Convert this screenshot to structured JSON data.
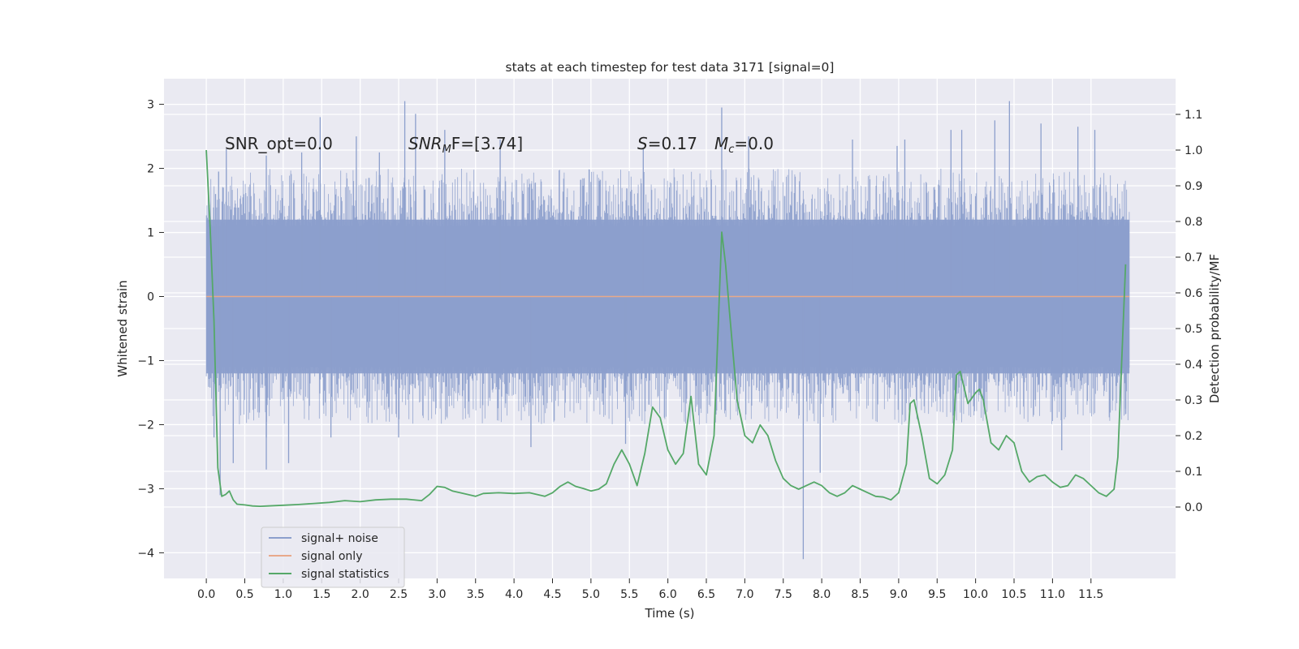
{
  "chart_data": {
    "type": "line",
    "title": "stats at each timestep for test data 3171 [signal=0]",
    "xlabel": "Time (s)",
    "ylabel": "Whitened strain",
    "ylabel_right": "Detection probability/MF",
    "xlim": [
      -0.55,
      12.6
    ],
    "ylim": [
      -4.4,
      3.4
    ],
    "ylim_right": [
      -0.2,
      1.2
    ],
    "x_ticks": [
      0.0,
      0.5,
      1.0,
      1.5,
      2.0,
      2.5,
      3.0,
      3.5,
      4.0,
      4.5,
      5.0,
      5.5,
      6.0,
      6.5,
      7.0,
      7.5,
      8.0,
      8.5,
      9.0,
      9.5,
      10.0,
      10.5,
      11.0,
      11.5
    ],
    "x_tick_labels": [
      "0.0",
      "0.5",
      "1.0",
      "1.5",
      "2.0",
      "2.5",
      "3.0",
      "3.5",
      "4.0",
      "4.5",
      "5.0",
      "5.5",
      "6.0",
      "6.5",
      "7.0",
      "7.5",
      "8.0",
      "8.5",
      "9.0",
      "9.5",
      "10.0",
      "10.5",
      "11.0",
      "11.5"
    ],
    "y_ticks": [
      3,
      2,
      1,
      0,
      -1,
      -2,
      -3,
      -4
    ],
    "y_tick_labels": [
      "3",
      "2",
      "1",
      "0",
      "−1",
      "−2",
      "−3",
      "−4"
    ],
    "y_ticks_right": [
      1.1,
      1.0,
      0.9,
      0.8,
      0.7,
      0.6,
      0.5,
      0.4,
      0.3,
      0.2,
      0.1,
      0.0
    ],
    "y_tick_labels_right": [
      "1.1",
      "1.0",
      "0.9",
      "0.8",
      "0.7",
      "0.6",
      "0.5",
      "0.4",
      "0.3",
      "0.2",
      "0.1",
      "0.0"
    ],
    "grid": true,
    "legend": {
      "placement": "lower-left",
      "entries": [
        {
          "label": "signal+ noise",
          "color": "#8c9fcc"
        },
        {
          "label": "signal only",
          "color": "#e8a98a"
        },
        {
          "label": "signal statistics",
          "color": "#55a868"
        }
      ]
    },
    "annotations": [
      {
        "text": "SNR_opt=0.0"
      },
      {
        "text": "SNR",
        "sub": "M",
        "tail": "F=[3.74]"
      },
      {
        "text": "S",
        "tail": "=0.17"
      },
      {
        "text": "M",
        "sub": "c",
        "tail": "=0.0"
      }
    ],
    "series": [
      {
        "name": "signal+ noise",
        "axis": "left",
        "color": "#8c9fcc",
        "x_range": [
          0.0,
          12.0
        ],
        "band": [
          -1.2,
          1.2
        ],
        "spikes": [
          {
            "x": 0.05,
            "y": -1.25
          },
          {
            "x": 0.08,
            "y": 1.05
          },
          {
            "x": 0.1,
            "y": -2.2
          },
          {
            "x": 0.12,
            "y": 1.6
          },
          {
            "x": 0.16,
            "y": 1.95
          },
          {
            "x": 0.18,
            "y": -3.1
          },
          {
            "x": 0.22,
            "y": 1.7
          },
          {
            "x": 0.26,
            "y": 2.3
          },
          {
            "x": 0.35,
            "y": -2.6
          },
          {
            "x": 0.78,
            "y": -2.2
          },
          {
            "x": 0.78,
            "y": 2.2
          },
          {
            "x": 0.78,
            "y": -2.7
          },
          {
            "x": 1.07,
            "y": -2.6
          },
          {
            "x": 1.24,
            "y": 2.25
          },
          {
            "x": 1.48,
            "y": 2.8
          },
          {
            "x": 1.62,
            "y": -2.2
          },
          {
            "x": 1.95,
            "y": 2.5
          },
          {
            "x": 2.25,
            "y": 2.25
          },
          {
            "x": 2.5,
            "y": -2.2
          },
          {
            "x": 2.58,
            "y": 3.05
          },
          {
            "x": 2.72,
            "y": 2.85
          },
          {
            "x": 3.1,
            "y": 2.6
          },
          {
            "x": 3.82,
            "y": 2.45
          },
          {
            "x": 4.22,
            "y": -2.35
          },
          {
            "x": 5.45,
            "y": -2.3
          },
          {
            "x": 5.68,
            "y": 2.3
          },
          {
            "x": 6.7,
            "y": 2.95
          },
          {
            "x": 7.05,
            "y": 2.5
          },
          {
            "x": 7.76,
            "y": -4.1
          },
          {
            "x": 7.98,
            "y": -2.75
          },
          {
            "x": 8.4,
            "y": 2.45
          },
          {
            "x": 8.98,
            "y": 2.35
          },
          {
            "x": 9.08,
            "y": 2.45
          },
          {
            "x": 9.68,
            "y": 2.6
          },
          {
            "x": 9.82,
            "y": 2.6
          },
          {
            "x": 10.25,
            "y": 2.75
          },
          {
            "x": 10.44,
            "y": 3.05
          },
          {
            "x": 10.85,
            "y": 2.7
          },
          {
            "x": 11.12,
            "y": -2.4
          },
          {
            "x": 11.33,
            "y": 2.65
          },
          {
            "x": 11.55,
            "y": 2.6
          },
          {
            "x": 11.95,
            "y": -1.75
          }
        ]
      },
      {
        "name": "signal only",
        "axis": "left",
        "color": "#e8a98a",
        "x": [
          0.0,
          12.0
        ],
        "y": [
          0.0,
          0.0
        ]
      },
      {
        "name": "signal statistics",
        "axis": "right",
        "color": "#55a868",
        "x": [
          0.0,
          0.05,
          0.1,
          0.15,
          0.2,
          0.25,
          0.3,
          0.35,
          0.4,
          0.5,
          0.6,
          0.7,
          0.8,
          1.0,
          1.2,
          1.4,
          1.6,
          1.8,
          2.0,
          2.2,
          2.4,
          2.6,
          2.8,
          2.9,
          3.0,
          3.1,
          3.2,
          3.3,
          3.5,
          3.6,
          3.8,
          4.0,
          4.2,
          4.4,
          4.5,
          4.6,
          4.7,
          4.8,
          4.9,
          5.0,
          5.1,
          5.2,
          5.3,
          5.4,
          5.5,
          5.6,
          5.7,
          5.8,
          5.9,
          6.0,
          6.1,
          6.2,
          6.3,
          6.4,
          6.5,
          6.6,
          6.7,
          6.75,
          6.8,
          6.9,
          7.0,
          7.1,
          7.2,
          7.3,
          7.4,
          7.5,
          7.6,
          7.7,
          7.8,
          7.9,
          8.0,
          8.1,
          8.2,
          8.3,
          8.4,
          8.5,
          8.6,
          8.7,
          8.8,
          8.9,
          9.0,
          9.1,
          9.15,
          9.2,
          9.3,
          9.4,
          9.5,
          9.6,
          9.7,
          9.75,
          9.8,
          9.9,
          10.0,
          10.05,
          10.1,
          10.2,
          10.3,
          10.4,
          10.5,
          10.6,
          10.7,
          10.8,
          10.9,
          11.0,
          11.1,
          11.2,
          11.3,
          11.4,
          11.5,
          11.6,
          11.7,
          11.8,
          11.85,
          11.95
        ],
        "y": [
          1.0,
          0.78,
          0.52,
          0.11,
          0.03,
          0.035,
          0.045,
          0.02,
          0.008,
          0.006,
          0.003,
          0.002,
          0.003,
          0.005,
          0.007,
          0.01,
          0.013,
          0.018,
          0.015,
          0.02,
          0.022,
          0.022,
          0.018,
          0.035,
          0.058,
          0.055,
          0.045,
          0.04,
          0.03,
          0.038,
          0.04,
          0.038,
          0.04,
          0.03,
          0.04,
          0.058,
          0.07,
          0.058,
          0.052,
          0.045,
          0.05,
          0.065,
          0.12,
          0.16,
          0.12,
          0.06,
          0.15,
          0.28,
          0.25,
          0.16,
          0.12,
          0.15,
          0.31,
          0.12,
          0.09,
          0.2,
          0.77,
          0.68,
          0.55,
          0.3,
          0.2,
          0.18,
          0.23,
          0.2,
          0.13,
          0.08,
          0.06,
          0.05,
          0.06,
          0.07,
          0.06,
          0.04,
          0.03,
          0.04,
          0.06,
          0.05,
          0.04,
          0.03,
          0.028,
          0.02,
          0.04,
          0.12,
          0.29,
          0.3,
          0.2,
          0.08,
          0.065,
          0.09,
          0.16,
          0.37,
          0.38,
          0.29,
          0.32,
          0.33,
          0.3,
          0.18,
          0.16,
          0.2,
          0.18,
          0.1,
          0.07,
          0.085,
          0.09,
          0.07,
          0.055,
          0.06,
          0.09,
          0.08,
          0.06,
          0.04,
          0.03,
          0.05,
          0.14,
          0.68
        ]
      }
    ]
  }
}
